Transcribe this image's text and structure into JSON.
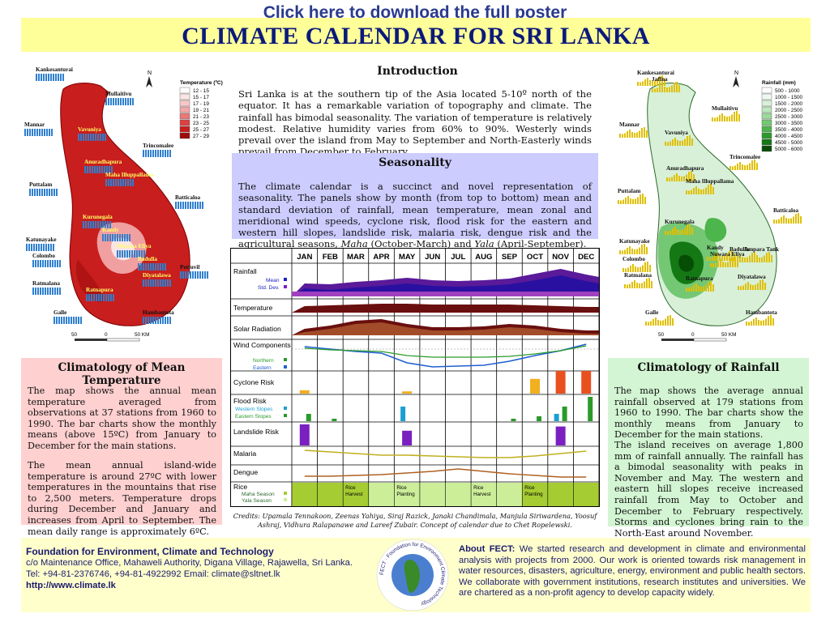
{
  "download_link": "Click here to download the full poster",
  "title": "CLIMATE CALENDAR FOR SRI LANKA",
  "intro": {
    "title": "Introduction",
    "text": "Sri Lanka is at the southern tip of the Asia located 5-10º north of the equator. It has a remarkable variation of topography and climate. The rainfall has bimodal seasonality. The variation of temperature is relatively modest. Relative humidity varies from 60% to 90%. Westerly winds prevail over the island from May to September and North-Easterly winds prevail from December to February."
  },
  "seasonality": {
    "title": "Seasonality",
    "text_a": "The climate calendar is a succinct and novel representation of seasonality. The panels show by month (from top to bottom) mean and standard deviation of rainfall, mean temperature, mean zonal and meridional wind speeds, cyclone risk, flood risk for the eastern and western hill slopes, landslide risk, malaria risk, dengue risk and the agricultural seasons, ",
    "maha": "Maha",
    "text_b": " (October-March) and ",
    "yala": "Yala",
    "text_c": " (April-September)."
  },
  "calendar": {
    "months": [
      "JAN",
      "FEB",
      "MAR",
      "APR",
      "MAY",
      "JUN",
      "JUL",
      "AUG",
      "SEP",
      "OCT",
      "NOV",
      "DEC"
    ],
    "rows": {
      "rainfall": "Rainfall",
      "rain_mean": "Mean",
      "rain_std": "Std. Dev.",
      "temperature": "Temperature",
      "solar": "Solar Radiation",
      "wind": "Wind Components",
      "wind_north": "Northern",
      "wind_east": "Eastern",
      "cyclone": "Cyclone Risk",
      "flood": "Flood Risk",
      "flood_west": "Western Slopes",
      "flood_east": "Eastern Slopes",
      "landslide": "Landslide Risk",
      "malaria": "Malaria",
      "dengue": "Dengue",
      "rice": "Rice",
      "maha_season": "Maha Season",
      "yala_season": "Yala Season"
    },
    "rice_events": [
      "Rice Harvest",
      "Rice Planting",
      "Rice Harvest",
      "Rice Planting"
    ],
    "cyclone_risk": [
      0.15,
      0,
      0,
      0,
      0.1,
      0,
      0,
      0,
      0,
      0.65,
      1,
      1
    ],
    "flood_west": [
      0,
      0,
      0,
      0,
      0.6,
      0,
      0,
      0,
      0,
      0,
      0.3,
      0
    ],
    "flood_east": [
      0.3,
      0.1,
      0,
      0,
      0,
      0,
      0,
      0,
      0.1,
      0.2,
      0.6,
      1
    ],
    "landslide_risk": [
      1,
      0,
      0,
      0,
      0.7,
      0,
      0,
      0,
      0,
      0,
      0.9,
      0
    ]
  },
  "credits": "Credits:  Upamala Tennakoon, Zeenas Yahiya, Siraj Razick, Janaki Chandimala, Manjula Siriwardena, Yoosuf Ashraj, Vidhura Ralapanawe and Lareef Zubair. Concept of calendar due to Chet Ropelewski.",
  "temp_panel": {
    "title": "Climatology of Mean Temperature",
    "p1": "The map shows the annual mean temperature averaged from observations at 37 stations from 1960 to 1990. The bar charts show the monthly means (above 15ºC) from January to December for the main stations.",
    "p2": "The mean annual island-wide temperature is around 27ºC with lower temperatures in the mountains that rise to 2,500 meters. Temperature drops during December and January and increases from April to September. The mean daily range is approximately  6ºC."
  },
  "rain_panel": {
    "title": "Climatology of Rainfall",
    "p1": "The map shows the average annual rainfall observed at 179 stations from 1960 to 1990. The bar charts show the monthly means from January to December for the main stations.",
    "p2": "The island receives on average 1,800 mm of rainfall annually. The rainfall has a bimodal seasonality with peaks in November and May. The western and eastern hill slopes receive increased rainfall from May to October and December to February respectively. Storms and cyclones bring rain to the North-East around November."
  },
  "temp_map": {
    "legend_title": "Temperature (ºC)",
    "legend": [
      "12 - 15",
      "15 - 17",
      "17 - 19",
      "19 - 21",
      "21 - 23",
      "23 - 25",
      "25 - 27",
      "27 - 29"
    ],
    "legend_colors": [
      "#ffffff",
      "#fde5e5",
      "#f8c8c8",
      "#f2a8a8",
      "#e87878",
      "#dc4040",
      "#c81e1e",
      "#9e0b0b"
    ],
    "stations": [
      "Kankesanturai",
      "Mullaitivu",
      "Mannar",
      "Vavuniya",
      "Trincomalee",
      "Anuradhapura",
      "Maha Illuppallama",
      "Puttalam",
      "Batticaloa",
      "Kurunegala",
      "Kandy",
      "Katunayake",
      "Colombo",
      "Nuwara Eliya",
      "Badulla",
      "Pottuvil",
      "Diyatalawa",
      "Ratmalana",
      "Ratnapura",
      "Galle",
      "Hambantota"
    ],
    "scale": [
      "50",
      "0",
      "50 KM"
    ]
  },
  "rain_map": {
    "legend_title": "Rainfall (mm)",
    "legend": [
      "500 - 1000",
      "1000 - 1500",
      "1500 - 2000",
      "2000 - 2500",
      "2500 - 3000",
      "3000 - 3500",
      "3500 - 4000",
      "4000 - 4500",
      "4500 - 5000",
      "5000 - 6000"
    ],
    "legend_colors": [
      "#ffffff",
      "#eef9ee",
      "#d8f0d8",
      "#bde6bd",
      "#9cd99c",
      "#74c874",
      "#4cb54c",
      "#2a9a2a",
      "#147814",
      "#064d06"
    ],
    "stations": [
      "Kankesanturai",
      "Jaffna",
      "Mullaitivu",
      "Mannar",
      "Vavuniya",
      "Trincomalee",
      "Anuradhapura",
      "Maha Illuppallama",
      "Puttalam",
      "Batticaloa",
      "Kurunegala",
      "Kandy",
      "Katunayake",
      "Colombo",
      "Nuwara Eliya",
      "Badulla",
      "Ampara Tank",
      "Diyatalawa",
      "Ratmalana",
      "Ratnapura",
      "Galle",
      "Hambantota"
    ],
    "scale": [
      "50",
      "0",
      "50 KM"
    ]
  },
  "footer": {
    "org": "Foundation for Environment, Climate and Technology",
    "address": "c/o Maintenance Office, Mahaweli Authority, Digana Village, Rajawella, Sri Lanka.",
    "contact": "Tel: +94-81-2376746, +94-81-4922992   Email: climate@sltnet.lk",
    "url": "http://www.climate.lk",
    "logo_text": "FECT · Foundation for Environment Climate Technology",
    "about_label": "About FECT:",
    "about": "  We started research and development in climate and environmental analysis with projects from 2000. Our work is oriented towards risk management in water resources, disasters, agriculture, energy, environment and public health sectors. We collaborate with government institutions, research institutes and universities. We are  chartered as a non-profit agency to develop capacity widely."
  }
}
